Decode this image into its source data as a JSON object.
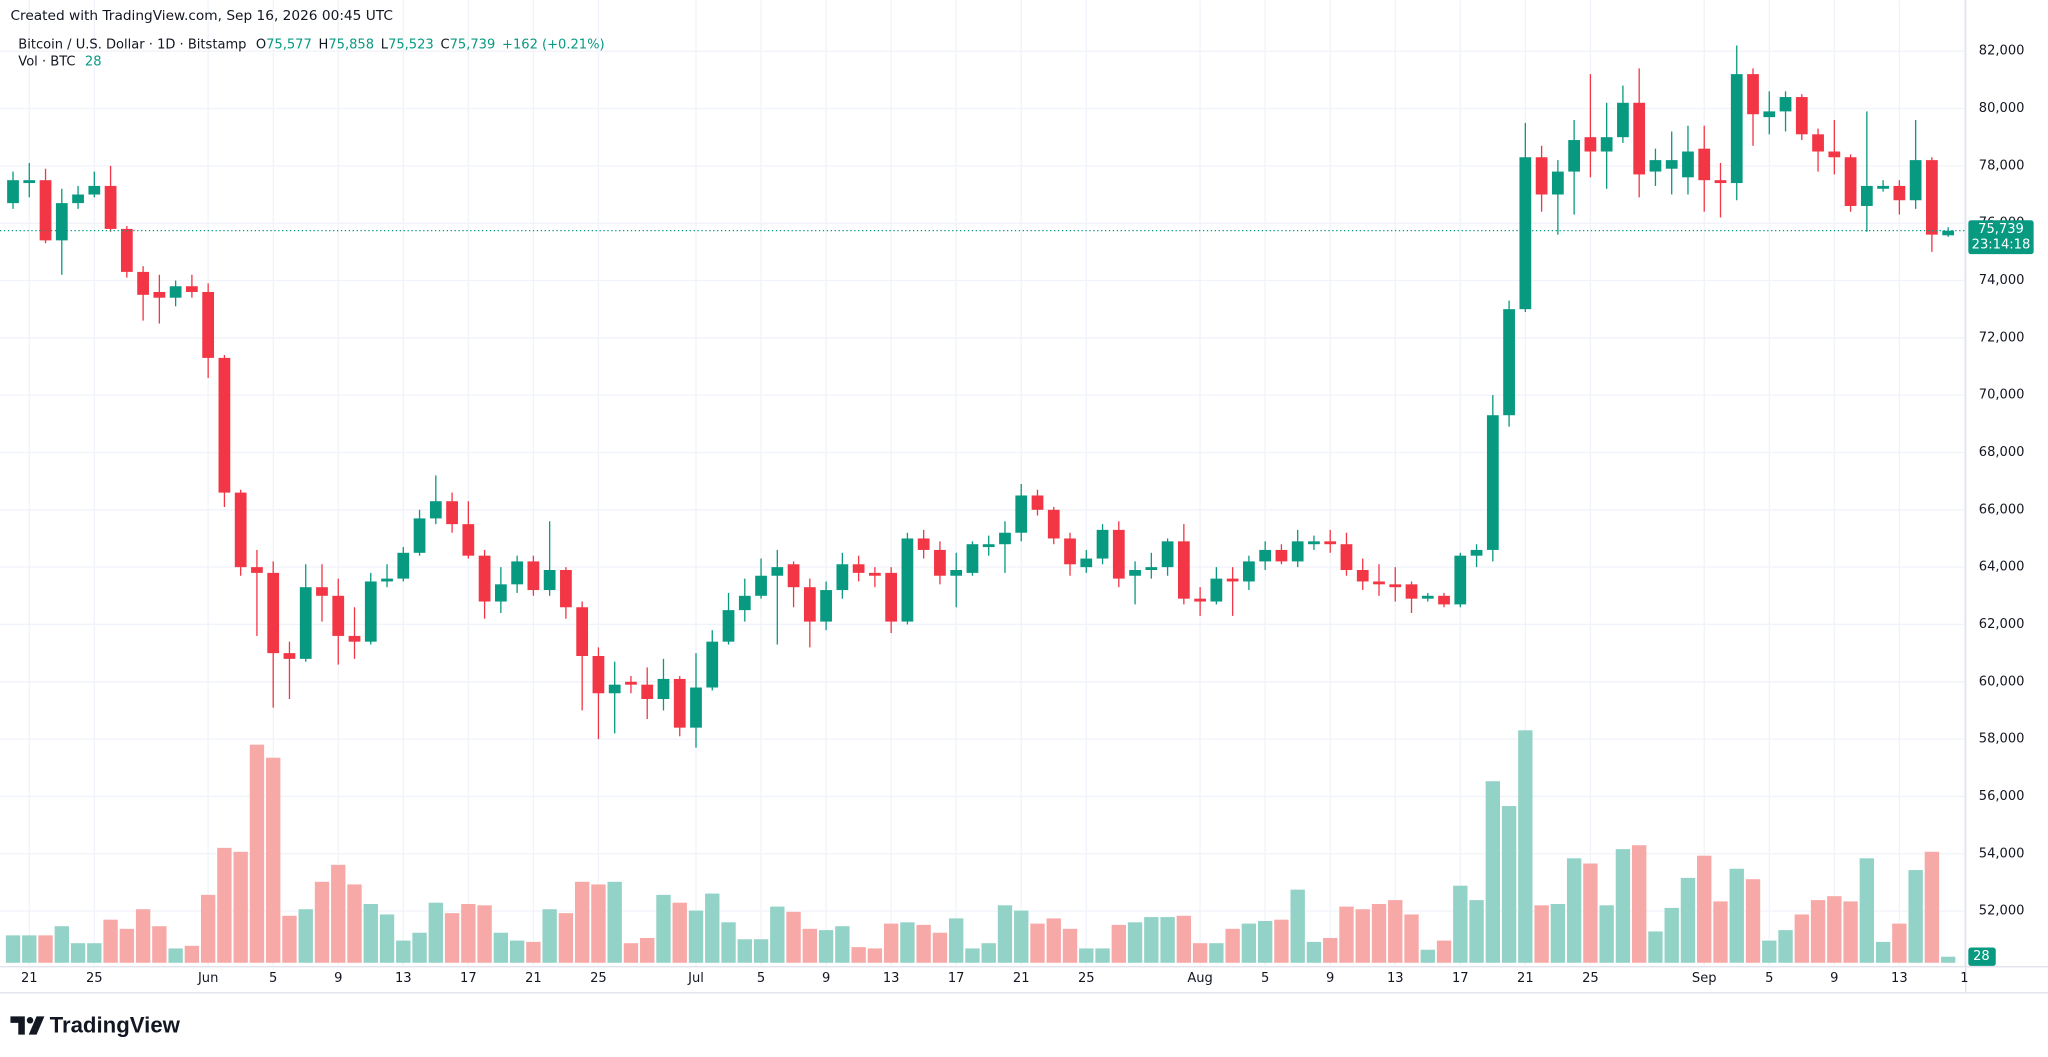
{
  "chart_data": {
    "type": "candlestick",
    "header": "Created with TradingView.com, Sep 16, 2026 00:45 UTC",
    "title": "Bitcoin / U.S. Dollar · 1D · Bitstamp",
    "ohlc": [
      {
        "key": "O",
        "label": "75,577"
      },
      {
        "key": "H",
        "label": "75,858"
      },
      {
        "key": "L",
        "label": "75,523"
      },
      {
        "key": "C",
        "label": "75,739"
      }
    ],
    "change_label": "+162 (+0.21%)",
    "volume_title": "Vol · BTC",
    "volume_label": "28",
    "price_label": "75,739",
    "countdown": "23:14:18",
    "brand": "TradingView",
    "up_color": "#089981",
    "down_color": "#f23645",
    "volume_up_color": "#93d2c7",
    "volume_down_color": "#f7a9a7",
    "grid": true,
    "xlim": [
      -0.8,
      120.08
    ],
    "ylim": [
      50060,
      83780
    ],
    "volume_ylim": [
      0,
      1200
    ],
    "xticks": [
      {
        "value": 1,
        "label": "21"
      },
      {
        "value": 5,
        "label": "25"
      },
      {
        "value": 12,
        "label": "Jun"
      },
      {
        "value": 16,
        "label": "5"
      },
      {
        "value": 20,
        "label": "9"
      },
      {
        "value": 24,
        "label": "13"
      },
      {
        "value": 28,
        "label": "17"
      },
      {
        "value": 32,
        "label": "21"
      },
      {
        "value": 36,
        "label": "25"
      },
      {
        "value": 42,
        "label": "Jul"
      },
      {
        "value": 46,
        "label": "5"
      },
      {
        "value": 50,
        "label": "9"
      },
      {
        "value": 54,
        "label": "13"
      },
      {
        "value": 58,
        "label": "17"
      },
      {
        "value": 62,
        "label": "21"
      },
      {
        "value": 66,
        "label": "25"
      },
      {
        "value": 73,
        "label": "Aug"
      },
      {
        "value": 77,
        "label": "5"
      },
      {
        "value": 81,
        "label": "9"
      },
      {
        "value": 85,
        "label": "13"
      },
      {
        "value": 89,
        "label": "17"
      },
      {
        "value": 93,
        "label": "21"
      },
      {
        "value": 97,
        "label": "25"
      },
      {
        "value": 104,
        "label": "Sep"
      },
      {
        "value": 108,
        "label": "5"
      },
      {
        "value": 112,
        "label": "9"
      },
      {
        "value": 116,
        "label": "13"
      },
      {
        "value": 120,
        "label": "1"
      }
    ],
    "yticks": [
      {
        "value": 52000,
        "label": "52,000"
      },
      {
        "value": 54000,
        "label": "54,000"
      },
      {
        "value": 56000,
        "label": "56,000"
      },
      {
        "value": 58000,
        "label": "58,000"
      },
      {
        "value": 60000,
        "label": "60,000"
      },
      {
        "value": 62000,
        "label": "62,000"
      },
      {
        "value": 64000,
        "label": "64,000"
      },
      {
        "value": 66000,
        "label": "66,000"
      },
      {
        "value": 68000,
        "label": "68,000"
      },
      {
        "value": 70000,
        "label": "70,000"
      },
      {
        "value": 72000,
        "label": "72,000"
      },
      {
        "value": 74000,
        "label": "74,000"
      },
      {
        "value": 76000,
        "label": "76,000"
      },
      {
        "value": 78000,
        "label": "78,000"
      },
      {
        "value": 80000,
        "label": "80,000"
      },
      {
        "value": 82000,
        "label": "82,000"
      }
    ],
    "open": [
      76700,
      77400,
      77500,
      75400,
      76700,
      77000,
      77300,
      75800,
      74300,
      73600,
      73400,
      73800,
      73600,
      71300,
      66600,
      64000,
      63800,
      61000,
      60800,
      63300,
      63000,
      61600,
      61400,
      63500,
      63600,
      64500,
      65700,
      66300,
      65500,
      64400,
      62800,
      63400,
      64200,
      63200,
      63900,
      62600,
      60900,
      59600,
      60000,
      59900,
      59400,
      60100,
      58400,
      59800,
      61400,
      62500,
      63000,
      63700,
      64100,
      63300,
      62100,
      63200,
      64100,
      63800,
      63800,
      62100,
      65000,
      64600,
      63700,
      63800,
      64700,
      64800,
      65200,
      66500,
      66000,
      65000,
      64000,
      64300,
      65300,
      63700,
      63900,
      64000,
      64900,
      62900,
      62800,
      63600,
      63500,
      64200,
      64600,
      64200,
      64800,
      64900,
      64800,
      63900,
      63500,
      63400,
      63400,
      62900,
      63000,
      62700,
      64400,
      64600,
      69300,
      73000,
      78300,
      77000,
      77800,
      79000,
      78500,
      79000,
      80200,
      77800,
      77900,
      77600,
      78600,
      77500,
      77400,
      81200,
      79700,
      79900,
      80400,
      79100,
      78500,
      78300,
      76600,
      77200,
      77300,
      76800,
      78200,
      75577
    ],
    "high": [
      77800,
      78100,
      77900,
      77200,
      77300,
      77800,
      78000,
      75900,
      74500,
      74200,
      74000,
      74200,
      73900,
      71400,
      66700,
      64600,
      64200,
      61400,
      64100,
      64100,
      63600,
      62600,
      63800,
      64100,
      64700,
      66000,
      67200,
      66600,
      66300,
      64600,
      64000,
      64400,
      64400,
      65600,
      64000,
      62800,
      61200,
      60700,
      60200,
      60500,
      60800,
      60200,
      61000,
      61800,
      63100,
      63600,
      64300,
      64600,
      64200,
      63600,
      63500,
      64500,
      64400,
      64000,
      64000,
      65200,
      65300,
      64900,
      64500,
      64900,
      65100,
      65600,
      66900,
      66700,
      66100,
      65200,
      64600,
      65500,
      65600,
      64200,
      64500,
      65000,
      65500,
      63300,
      64000,
      64000,
      64400,
      64900,
      64800,
      65300,
      65100,
      65300,
      65200,
      64300,
      64100,
      64000,
      63500,
      63100,
      63100,
      64500,
      64800,
      70000,
      73300,
      79500,
      78700,
      78200,
      79600,
      81200,
      80200,
      80800,
      81400,
      78600,
      79200,
      79400,
      79400,
      78100,
      82200,
      81400,
      80600,
      80600,
      80500,
      79300,
      79600,
      78400,
      79900,
      77500,
      77500,
      79600,
      78300,
      75858
    ],
    "low": [
      76500,
      76900,
      75300,
      74200,
      76500,
      76900,
      75700,
      74100,
      72600,
      72500,
      73100,
      73400,
      70600,
      66100,
      63700,
      61600,
      59100,
      59400,
      60700,
      62100,
      60600,
      60800,
      61300,
      63300,
      63500,
      64400,
      65500,
      65200,
      64300,
      62200,
      62400,
      63100,
      63000,
      63000,
      62200,
      59000,
      58000,
      58200,
      59600,
      58700,
      59000,
      58100,
      57700,
      59700,
      61300,
      62100,
      62900,
      61300,
      62600,
      61200,
      61800,
      62900,
      63500,
      63300,
      61700,
      62000,
      64300,
      63400,
      62600,
      63700,
      64400,
      63800,
      64900,
      65800,
      64800,
      63700,
      63800,
      64100,
      63300,
      62700,
      63600,
      63700,
      62700,
      62300,
      62700,
      62300,
      63200,
      63900,
      64100,
      64000,
      64600,
      64500,
      63700,
      63200,
      63000,
      62800,
      62400,
      62800,
      62600,
      62600,
      64000,
      64200,
      68900,
      72900,
      76400,
      75600,
      76300,
      77600,
      77200,
      78800,
      76900,
      77300,
      77000,
      77000,
      76400,
      76200,
      76800,
      78700,
      79100,
      79200,
      78900,
      77800,
      77700,
      76400,
      75700,
      77100,
      76300,
      76500,
      75000,
      75523
    ],
    "close": [
      77500,
      77500,
      75400,
      76700,
      77000,
      77300,
      75800,
      74300,
      73500,
      73400,
      73800,
      73600,
      71300,
      66600,
      64000,
      63800,
      61000,
      60800,
      63300,
      63000,
      61600,
      61400,
      63500,
      63600,
      64500,
      65700,
      66300,
      65500,
      64400,
      62800,
      63400,
      64200,
      63200,
      63900,
      62600,
      60900,
      59600,
      59900,
      59900,
      59400,
      60100,
      58400,
      59800,
      61400,
      62500,
      63000,
      63700,
      64000,
      63300,
      62100,
      63200,
      64100,
      63800,
      63700,
      62100,
      65000,
      64600,
      63700,
      63900,
      64800,
      64800,
      65200,
      66500,
      66000,
      65000,
      64100,
      64300,
      65300,
      63600,
      63900,
      64000,
      64900,
      62900,
      62800,
      63600,
      63500,
      64200,
      64600,
      64200,
      64900,
      64900,
      64800,
      63900,
      63500,
      63400,
      63300,
      62900,
      63000,
      62700,
      64400,
      64600,
      69300,
      73000,
      78300,
      77000,
      77800,
      78900,
      78500,
      79000,
      80200,
      77700,
      78200,
      78200,
      78500,
      77500,
      77400,
      81200,
      79800,
      79900,
      80400,
      79100,
      78500,
      78300,
      76600,
      77300,
      77300,
      76800,
      78200,
      75600,
      75739
    ],
    "volume": [
      126,
      126,
      126,
      168,
      90,
      90,
      198,
      156,
      246,
      168,
      66,
      78,
      312,
      528,
      510,
      1002,
      942,
      216,
      246,
      372,
      450,
      360,
      270,
      222,
      102,
      138,
      276,
      228,
      270,
      264,
      138,
      102,
      96,
      246,
      228,
      372,
      360,
      372,
      90,
      114,
      312,
      276,
      240,
      318,
      186,
      108,
      108,
      258,
      234,
      156,
      150,
      168,
      72,
      66,
      180,
      186,
      174,
      138,
      204,
      66,
      90,
      264,
      240,
      180,
      204,
      156,
      66,
      66,
      174,
      186,
      210,
      210,
      216,
      90,
      90,
      156,
      180,
      192,
      198,
      336,
      96,
      114,
      258,
      246,
      270,
      288,
      222,
      60,
      102,
      354,
      288,
      834,
      720,
      1068,
      264,
      270,
      480,
      456,
      264,
      522,
      540,
      144,
      252,
      390,
      492,
      282,
      432,
      384,
      102,
      150,
      222,
      288,
      306,
      282,
      480,
      96,
      180,
      426,
      510,
      28
    ]
  }
}
